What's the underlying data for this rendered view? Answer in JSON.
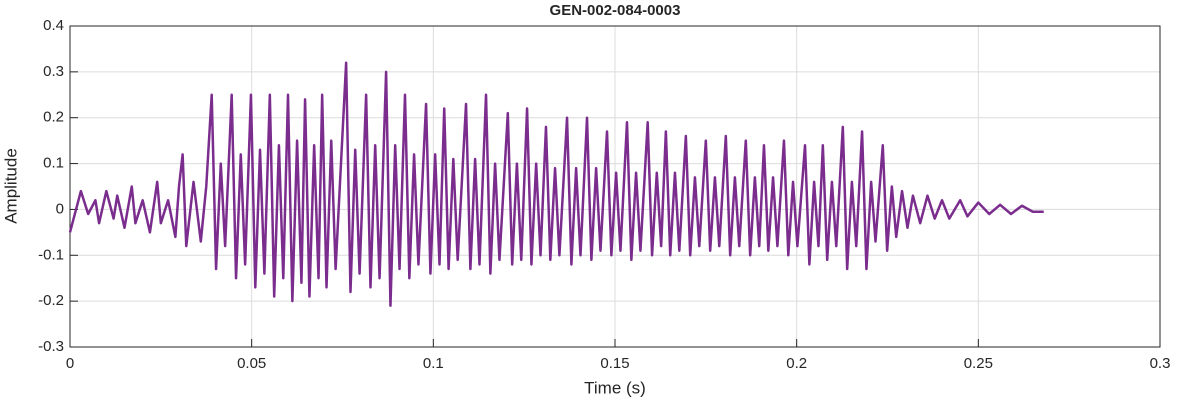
{
  "chart_data": {
    "type": "line",
    "title": "GEN-002-084-0003",
    "x_label": "Time (s)",
    "y_label": "Amplitude",
    "color": "#7b2d8e",
    "grid": true,
    "xlim": [
      0,
      0.3
    ],
    "ylim": [
      -0.3,
      0.4
    ],
    "xticks": [
      0,
      0.05,
      0.1,
      0.15,
      0.2,
      0.25,
      0.3
    ],
    "yticks": [
      -0.3,
      -0.2,
      -0.1,
      0,
      0.1,
      0.2,
      0.3,
      0.4
    ],
    "x": [
      0,
      0.002,
      0.003,
      0.005,
      0.007,
      0.008,
      0.01,
      0.012,
      0.013,
      0.015,
      0.017,
      0.018,
      0.02,
      0.022,
      0.024,
      0.025,
      0.027,
      0.029,
      0.03,
      0.031,
      0.032,
      0.034,
      0.036,
      0.0375,
      0.039,
      0.0402,
      0.0415,
      0.0427,
      0.0445,
      0.0457,
      0.047,
      0.0482,
      0.0498,
      0.051,
      0.0523,
      0.0535,
      0.055,
      0.0562,
      0.0575,
      0.0587,
      0.06,
      0.0612,
      0.0625,
      0.0637,
      0.0647,
      0.0659,
      0.0672,
      0.0684,
      0.0694,
      0.0706,
      0.0719,
      0.0731,
      0.076,
      0.0772,
      0.0785,
      0.0797,
      0.0815,
      0.0827,
      0.084,
      0.0852,
      0.087,
      0.0882,
      0.0895,
      0.0907,
      0.0922,
      0.0934,
      0.0947,
      0.0959,
      0.098,
      0.0992,
      0.1005,
      0.1017,
      0.103,
      0.1042,
      0.1055,
      0.1067,
      0.109,
      0.1102,
      0.1115,
      0.1127,
      0.1145,
      0.1157,
      0.117,
      0.1182,
      0.1205,
      0.1217,
      0.123,
      0.1242,
      0.1258,
      0.127,
      0.1283,
      0.1295,
      0.131,
      0.1322,
      0.1335,
      0.1347,
      0.1368,
      0.138,
      0.1393,
      0.1405,
      0.1423,
      0.1435,
      0.1448,
      0.146,
      0.1478,
      0.149,
      0.1503,
      0.1515,
      0.1533,
      0.1545,
      0.1558,
      0.157,
      0.159,
      0.1602,
      0.1615,
      0.1627,
      0.164,
      0.1652,
      0.1665,
      0.1677,
      0.1695,
      0.1707,
      0.172,
      0.1732,
      0.175,
      0.1762,
      0.1775,
      0.1787,
      0.1805,
      0.1817,
      0.183,
      0.1842,
      0.186,
      0.1872,
      0.1885,
      0.1897,
      0.191,
      0.1922,
      0.1935,
      0.1947,
      0.1965,
      0.1977,
      0.199,
      0.2002,
      0.2023,
      0.2035,
      0.2048,
      0.206,
      0.2072,
      0.2084,
      0.2097,
      0.2109,
      0.2127,
      0.2139,
      0.2152,
      0.2164,
      0.218,
      0.2192,
      0.2205,
      0.2217,
      0.2237,
      0.2249,
      0.2262,
      0.2274,
      0.229,
      0.2305,
      0.232,
      0.234,
      0.236,
      0.238,
      0.24,
      0.242,
      0.245,
      0.247,
      0.25,
      0.253,
      0.256,
      0.259,
      0.262,
      0.265,
      0.268
    ],
    "values": [
      -0.05,
      0.01,
      0.04,
      -0.01,
      0.02,
      -0.03,
      0.04,
      -0.02,
      0.03,
      -0.04,
      0.05,
      -0.03,
      0.02,
      -0.05,
      0.06,
      -0.03,
      0.02,
      -0.06,
      0.05,
      0.12,
      -0.08,
      0.06,
      -0.07,
      0.05,
      0.25,
      -0.13,
      0.1,
      -0.08,
      0.25,
      -0.15,
      0.12,
      -0.12,
      0.25,
      -0.17,
      0.13,
      -0.14,
      0.25,
      -0.19,
      0.14,
      -0.15,
      0.25,
      -0.2,
      0.15,
      -0.16,
      0.24,
      -0.19,
      0.14,
      -0.15,
      0.25,
      -0.17,
      0.15,
      -0.13,
      0.32,
      -0.18,
      0.13,
      -0.14,
      0.25,
      -0.17,
      0.14,
      -0.15,
      0.3,
      -0.21,
      0.14,
      -0.13,
      0.25,
      -0.15,
      0.12,
      -0.12,
      0.23,
      -0.14,
      0.12,
      -0.12,
      0.22,
      -0.13,
      0.11,
      -0.11,
      0.23,
      -0.13,
      0.11,
      -0.12,
      0.25,
      -0.14,
      0.1,
      -0.11,
      0.21,
      -0.12,
      0.1,
      -0.11,
      0.22,
      -0.12,
      0.1,
      -0.1,
      0.18,
      -0.11,
      0.09,
      -0.1,
      0.2,
      -0.12,
      0.09,
      -0.1,
      0.2,
      -0.11,
      0.09,
      -0.09,
      0.17,
      -0.1,
      0.08,
      -0.09,
      0.19,
      -0.11,
      0.08,
      -0.09,
      0.19,
      -0.1,
      0.08,
      -0.08,
      0.17,
      -0.1,
      0.08,
      -0.09,
      0.16,
      -0.1,
      0.07,
      -0.08,
      0.15,
      -0.09,
      0.07,
      -0.08,
      0.16,
      -0.1,
      0.07,
      -0.08,
      0.15,
      -0.1,
      0.07,
      -0.08,
      0.14,
      -0.09,
      0.07,
      -0.08,
      0.15,
      -0.1,
      0.06,
      -0.08,
      0.14,
      -0.12,
      0.06,
      -0.08,
      0.14,
      -0.11,
      0.06,
      -0.08,
      0.18,
      -0.13,
      0.06,
      -0.08,
      0.17,
      -0.13,
      0.06,
      -0.07,
      0.14,
      -0.09,
      0.05,
      -0.06,
      0.04,
      -0.04,
      0.03,
      -0.03,
      0.03,
      -0.02,
      0.02,
      -0.02,
      0.02,
      -0.015,
      0.015,
      -0.01,
      0.01,
      -0.01,
      0.008,
      -0.005,
      -0.005
    ]
  }
}
